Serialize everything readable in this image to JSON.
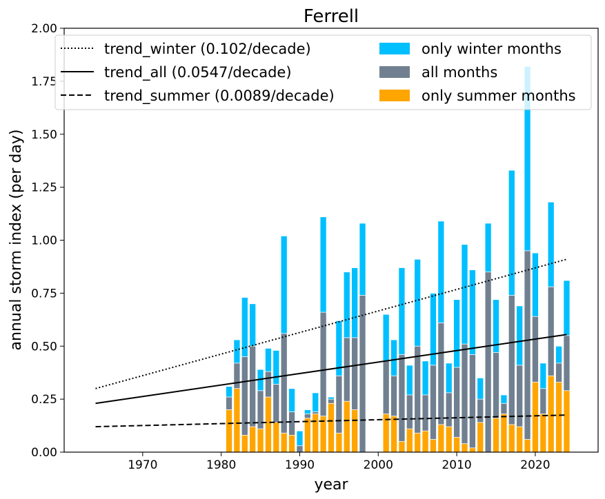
{
  "chart_data": {
    "type": "bar",
    "title": "Ferrell",
    "xlabel": "year",
    "ylabel": "annual storm index (per day)",
    "xlim": [
      1960,
      2028
    ],
    "ylim": [
      0,
      2.0
    ],
    "xticks": [
      "1970",
      "1980",
      "1990",
      "2000",
      "2010",
      "2020"
    ],
    "yticks": [
      "0.00",
      "0.25",
      "0.50",
      "0.75",
      "1.00",
      "1.25",
      "1.50",
      "1.75",
      "2.00"
    ],
    "grid": false,
    "legend_placement": "top",
    "colors": {
      "winter": "#00bfff",
      "all": "#708090",
      "summer": "#ffa500",
      "trend": "#000000"
    },
    "years": [
      1981,
      1982,
      1983,
      1984,
      1985,
      1986,
      1987,
      1988,
      1989,
      1990,
      1991,
      1992,
      1993,
      1994,
      1995,
      1996,
      1997,
      1998,
      2001,
      2002,
      2003,
      2004,
      2005,
      2006,
      2007,
      2008,
      2009,
      2010,
      2011,
      2012,
      2013,
      2014,
      2015,
      2016,
      2017,
      2018,
      2019,
      2020,
      2021,
      2022,
      2023,
      2024
    ],
    "series": [
      {
        "name": "only winter months",
        "key": "winter",
        "values": [
          0.31,
          0.53,
          0.73,
          0.7,
          0.39,
          0.49,
          0.48,
          1.02,
          0.3,
          0.1,
          0.2,
          0.28,
          1.11,
          0.26,
          0.62,
          0.85,
          0.87,
          1.08,
          0.65,
          0.53,
          0.87,
          0.41,
          0.91,
          0.43,
          0.75,
          1.09,
          0.42,
          0.72,
          0.98,
          0.86,
          0.35,
          1.08,
          0.72,
          0.27,
          1.33,
          0.69,
          1.82,
          0.94,
          0.42,
          1.18,
          0.5,
          0.81
        ]
      },
      {
        "name": "all months",
        "key": "all",
        "values": [
          0.26,
          0.42,
          0.45,
          0.5,
          0.29,
          0.38,
          0.32,
          0.56,
          0.19,
          0.03,
          0.18,
          0.19,
          0.66,
          0.25,
          0.36,
          0.54,
          0.54,
          0.74,
          0.43,
          0.36,
          0.46,
          0.27,
          0.5,
          0.27,
          0.41,
          0.61,
          0.28,
          0.4,
          0.51,
          0.46,
          0.25,
          0.85,
          0.47,
          0.23,
          0.74,
          0.41,
          0.95,
          0.64,
          0.3,
          0.78,
          0.42,
          0.55
        ]
      },
      {
        "name": "only summer months",
        "key": "summer",
        "values": [
          0.2,
          0.3,
          0.08,
          0.12,
          0.11,
          0.26,
          0.14,
          0.09,
          0.08,
          0.0,
          0.16,
          0.18,
          0.17,
          0.23,
          0.09,
          0.24,
          0.2,
          0.0,
          0.18,
          0.17,
          0.05,
          0.11,
          0.09,
          0.1,
          0.06,
          0.13,
          0.12,
          0.07,
          0.04,
          0.02,
          0.14,
          0.0,
          0.16,
          0.18,
          0.13,
          0.12,
          0.06,
          0.33,
          0.18,
          0.36,
          0.33,
          0.29
        ]
      }
    ],
    "trends": [
      {
        "name": "trend_winter (0.102/decade)",
        "style": "dotted",
        "x": [
          1964,
          2024
        ],
        "y": [
          0.3,
          0.91
        ]
      },
      {
        "name": "trend_all (0.0547/decade)",
        "style": "solid",
        "x": [
          1964,
          2024
        ],
        "y": [
          0.23,
          0.555
        ]
      },
      {
        "name": "trend_summer (0.0089/decade)",
        "style": "dashed",
        "x": [
          1964,
          2024
        ],
        "y": [
          0.12,
          0.175
        ]
      }
    ]
  }
}
